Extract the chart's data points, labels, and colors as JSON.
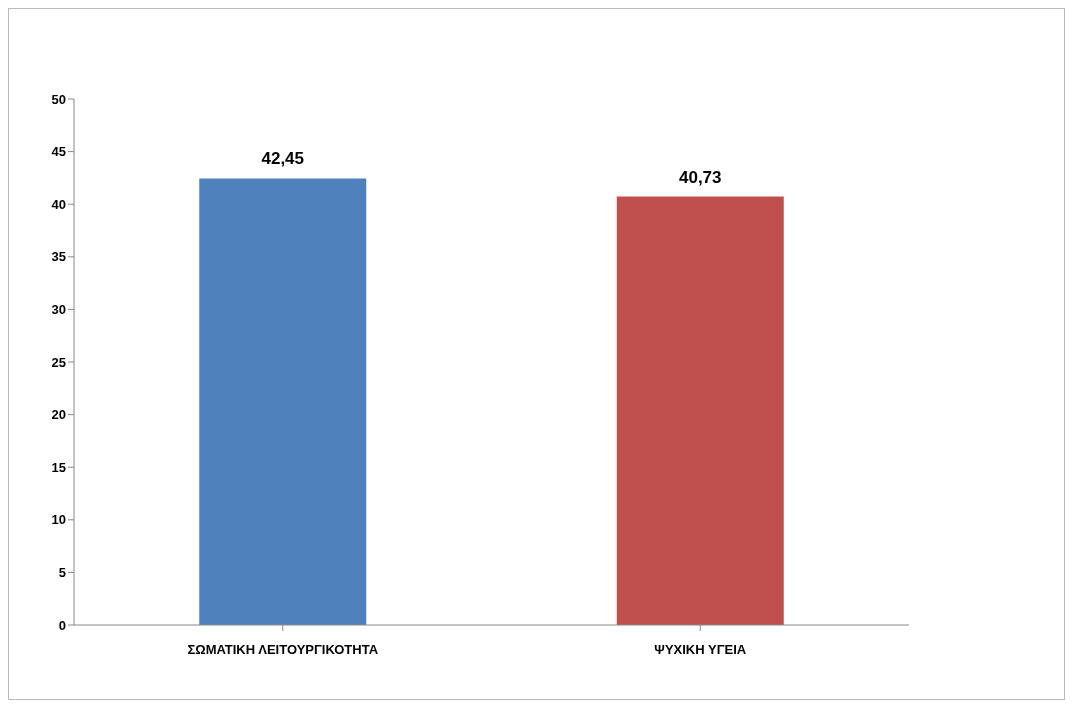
{
  "chart_data": {
    "type": "bar",
    "categories": [
      "ΣΩΜΑΤΙΚΗ ΛΕΙΤΟΥΡΓΙΚΟΤΗΤΑ",
      "ΨΥΧΙΚΗ ΥΓΕΙΑ"
    ],
    "values": [
      42.45,
      40.73
    ],
    "colors": [
      "#4f81bd",
      "#c0504d"
    ],
    "value_labels": [
      "42,45",
      "40,73"
    ],
    "ylim": [
      0,
      50
    ],
    "yticks": [
      0,
      5,
      10,
      15,
      20,
      25,
      30,
      35,
      40,
      45,
      50
    ],
    "grid": false
  }
}
